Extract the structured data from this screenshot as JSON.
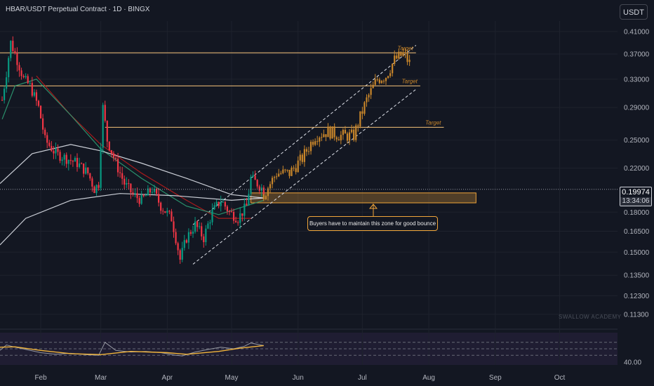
{
  "header": {
    "title": "HBAR/USDT Perpetual Contract · 1D · BINGX",
    "currency_badge": "USDT"
  },
  "price_badge": {
    "price": "0.19974",
    "countdown": "13:34:06"
  },
  "annotation": {
    "callout": "Buyers have to maintain this zone for good bounce"
  },
  "watermark": "SWALLOW ACADEMY",
  "colors": {
    "background": "#131722",
    "bull": "#089981",
    "bear": "#f23645",
    "projection": "#c9862a",
    "target_line": "#f5c27a",
    "zone_border": "#f0a53a",
    "ma_red": "#b71c1c",
    "ma_green": "#2e9e74",
    "ma_white": "#e0e3eb",
    "rsi_line": "#9598a1",
    "rsi_ma": "#f2b53b"
  },
  "chart_data": {
    "type": "candlestick",
    "symbol": "HBAR/USDT Perpetual Contract",
    "timeframe": "1D",
    "exchange": "BINGX",
    "y_axis": {
      "scale": "log",
      "ticks": [
        "0.41000",
        "0.37000",
        "0.33000",
        "0.29000",
        "0.25000",
        "0.22000",
        "0.18000",
        "0.16500",
        "0.15000",
        "0.13500",
        "0.12300",
        "0.11300"
      ],
      "range": [
        0.108,
        0.43
      ]
    },
    "x_axis": {
      "ticks": [
        {
          "label": "Feb",
          "date": "2025-02-01"
        },
        {
          "label": "Mar",
          "date": "2025-03-01"
        },
        {
          "label": "Apr",
          "date": "2025-04-01"
        },
        {
          "label": "May",
          "date": "2025-05-01"
        },
        {
          "label": "Jun",
          "date": "2025-06-01"
        },
        {
          "label": "Jul",
          "date": "2025-07-01"
        },
        {
          "label": "Aug",
          "date": "2025-08-01"
        },
        {
          "label": "Sep",
          "date": "2025-09-01"
        },
        {
          "label": "Oct",
          "date": "2025-10-01"
        }
      ],
      "range": [
        "2025-01-13",
        "2025-10-28"
      ]
    },
    "current_price": 0.19974,
    "price_path": [
      [
        "2025-01-14",
        0.3
      ],
      [
        "2025-01-16",
        0.34
      ],
      [
        "2025-01-18",
        0.39
      ],
      [
        "2025-01-21",
        0.36
      ],
      [
        "2025-01-24",
        0.33
      ],
      [
        "2025-01-27",
        0.32
      ],
      [
        "2025-01-31",
        0.29
      ],
      [
        "2025-02-03",
        0.25
      ],
      [
        "2025-02-08",
        0.235
      ],
      [
        "2025-02-13",
        0.23
      ],
      [
        "2025-02-18",
        0.225
      ],
      [
        "2025-02-23",
        0.215
      ],
      [
        "2025-02-26",
        0.2
      ],
      [
        "2025-02-28",
        0.205
      ],
      [
        "2025-03-02",
        0.29
      ],
      [
        "2025-03-04",
        0.25
      ],
      [
        "2025-03-08",
        0.225
      ],
      [
        "2025-03-12",
        0.205
      ],
      [
        "2025-03-16",
        0.195
      ],
      [
        "2025-03-20",
        0.19
      ],
      [
        "2025-03-25",
        0.2
      ],
      [
        "2025-03-29",
        0.185
      ],
      [
        "2025-04-03",
        0.175
      ],
      [
        "2025-04-07",
        0.145
      ],
      [
        "2025-04-10",
        0.16
      ],
      [
        "2025-04-14",
        0.17
      ],
      [
        "2025-04-18",
        0.16
      ],
      [
        "2025-04-22",
        0.18
      ],
      [
        "2025-04-26",
        0.19
      ],
      [
        "2025-04-30",
        0.18
      ],
      [
        "2025-05-04",
        0.175
      ],
      [
        "2025-05-08",
        0.185
      ],
      [
        "2025-05-10",
        0.21
      ],
      [
        "2025-05-13",
        0.205
      ],
      [
        "2025-05-16",
        0.199
      ]
    ],
    "projection_path": [
      [
        "2025-05-16",
        0.195
      ],
      [
        "2025-05-22",
        0.215
      ],
      [
        "2025-05-28",
        0.215
      ],
      [
        "2025-06-03",
        0.23
      ],
      [
        "2025-06-09",
        0.255
      ],
      [
        "2025-06-15",
        0.26
      ],
      [
        "2025-06-21",
        0.255
      ],
      [
        "2025-06-27",
        0.255
      ],
      [
        "2025-07-03",
        0.3
      ],
      [
        "2025-07-08",
        0.33
      ],
      [
        "2025-07-12",
        0.335
      ],
      [
        "2025-07-16",
        0.36
      ],
      [
        "2025-07-20",
        0.37
      ],
      [
        "2025-07-23",
        0.355
      ]
    ],
    "targets": [
      {
        "label": "Target",
        "price": 0.372,
        "from": "2025-01-13",
        "to": "2025-07-26"
      },
      {
        "label": "Target",
        "price": 0.32,
        "from": "2025-01-13",
        "to": "2025-07-28"
      },
      {
        "label": "Target",
        "price": 0.265,
        "from": "2025-03-03",
        "to": "2025-08-08"
      }
    ],
    "zone": {
      "top": 0.1965,
      "bottom": 0.1878,
      "from": "2025-05-10",
      "to": "2025-08-23"
    },
    "channel": {
      "upper": [
        [
          "2025-04-13",
          0.17
        ],
        [
          "2025-07-26",
          0.385
        ]
      ],
      "lower": [
        [
          "2025-04-13",
          0.142
        ],
        [
          "2025-07-26",
          0.315
        ]
      ]
    },
    "moving_averages": [
      {
        "color": "#b71c1c",
        "points": [
          [
            "2025-01-30",
            0.335
          ],
          [
            "2025-02-15",
            0.28
          ],
          [
            "2025-03-01",
            0.245
          ],
          [
            "2025-03-20",
            0.215
          ],
          [
            "2025-04-10",
            0.19
          ],
          [
            "2025-04-25",
            0.175
          ],
          [
            "2025-05-10",
            0.175
          ]
        ]
      },
      {
        "color": "#2e9e74",
        "points": [
          [
            "2025-01-14",
            0.275
          ],
          [
            "2025-01-20",
            0.32
          ],
          [
            "2025-01-30",
            0.33
          ],
          [
            "2025-02-15",
            0.28
          ],
          [
            "2025-03-01",
            0.24
          ],
          [
            "2025-03-20",
            0.21
          ],
          [
            "2025-04-10",
            0.185
          ],
          [
            "2025-04-25",
            0.178
          ],
          [
            "2025-05-16",
            0.19
          ]
        ]
      },
      {
        "color": "#e0e3eb",
        "points": [
          [
            "2025-01-13",
            0.205
          ],
          [
            "2025-01-28",
            0.235
          ],
          [
            "2025-02-15",
            0.245
          ],
          [
            "2025-03-01",
            0.238
          ],
          [
            "2025-03-20",
            0.225
          ],
          [
            "2025-04-10",
            0.21
          ],
          [
            "2025-05-01",
            0.195
          ],
          [
            "2025-05-16",
            0.192
          ]
        ]
      },
      {
        "color": "#e0e3eb",
        "points": [
          [
            "2025-01-13",
            0.155
          ],
          [
            "2025-01-25",
            0.175
          ],
          [
            "2025-02-15",
            0.19
          ],
          [
            "2025-03-10",
            0.196
          ],
          [
            "2025-04-05",
            0.194
          ],
          [
            "2025-05-01",
            0.19
          ],
          [
            "2025-05-16",
            0.192
          ]
        ]
      }
    ],
    "rsi": {
      "tick_label": "40.00",
      "level": 40,
      "bands": [
        70,
        50,
        30
      ],
      "series": [
        [
          "2025-01-13",
          45
        ],
        [
          "2025-01-16",
          62
        ],
        [
          "2025-01-20",
          55
        ],
        [
          "2025-01-25",
          48
        ],
        [
          "2025-02-01",
          38
        ],
        [
          "2025-02-08",
          33
        ],
        [
          "2025-02-15",
          36
        ],
        [
          "2025-02-22",
          32
        ],
        [
          "2025-02-28",
          30
        ],
        [
          "2025-03-03",
          70
        ],
        [
          "2025-03-08",
          45
        ],
        [
          "2025-03-15",
          40
        ],
        [
          "2025-03-22",
          42
        ],
        [
          "2025-03-29",
          38
        ],
        [
          "2025-04-05",
          30
        ],
        [
          "2025-04-08",
          28
        ],
        [
          "2025-04-14",
          40
        ],
        [
          "2025-04-20",
          48
        ],
        [
          "2025-04-26",
          55
        ],
        [
          "2025-05-02",
          50
        ],
        [
          "2025-05-07",
          58
        ],
        [
          "2025-05-10",
          68
        ],
        [
          "2025-05-13",
          64
        ],
        [
          "2025-05-16",
          60
        ]
      ],
      "ma": [
        [
          "2025-01-13",
          55
        ],
        [
          "2025-01-20",
          56
        ],
        [
          "2025-02-01",
          45
        ],
        [
          "2025-02-15",
          35
        ],
        [
          "2025-03-01",
          32
        ],
        [
          "2025-03-15",
          42
        ],
        [
          "2025-04-01",
          38
        ],
        [
          "2025-04-10",
          33
        ],
        [
          "2025-04-25",
          42
        ],
        [
          "2025-05-05",
          52
        ],
        [
          "2025-05-16",
          60
        ]
      ]
    }
  }
}
